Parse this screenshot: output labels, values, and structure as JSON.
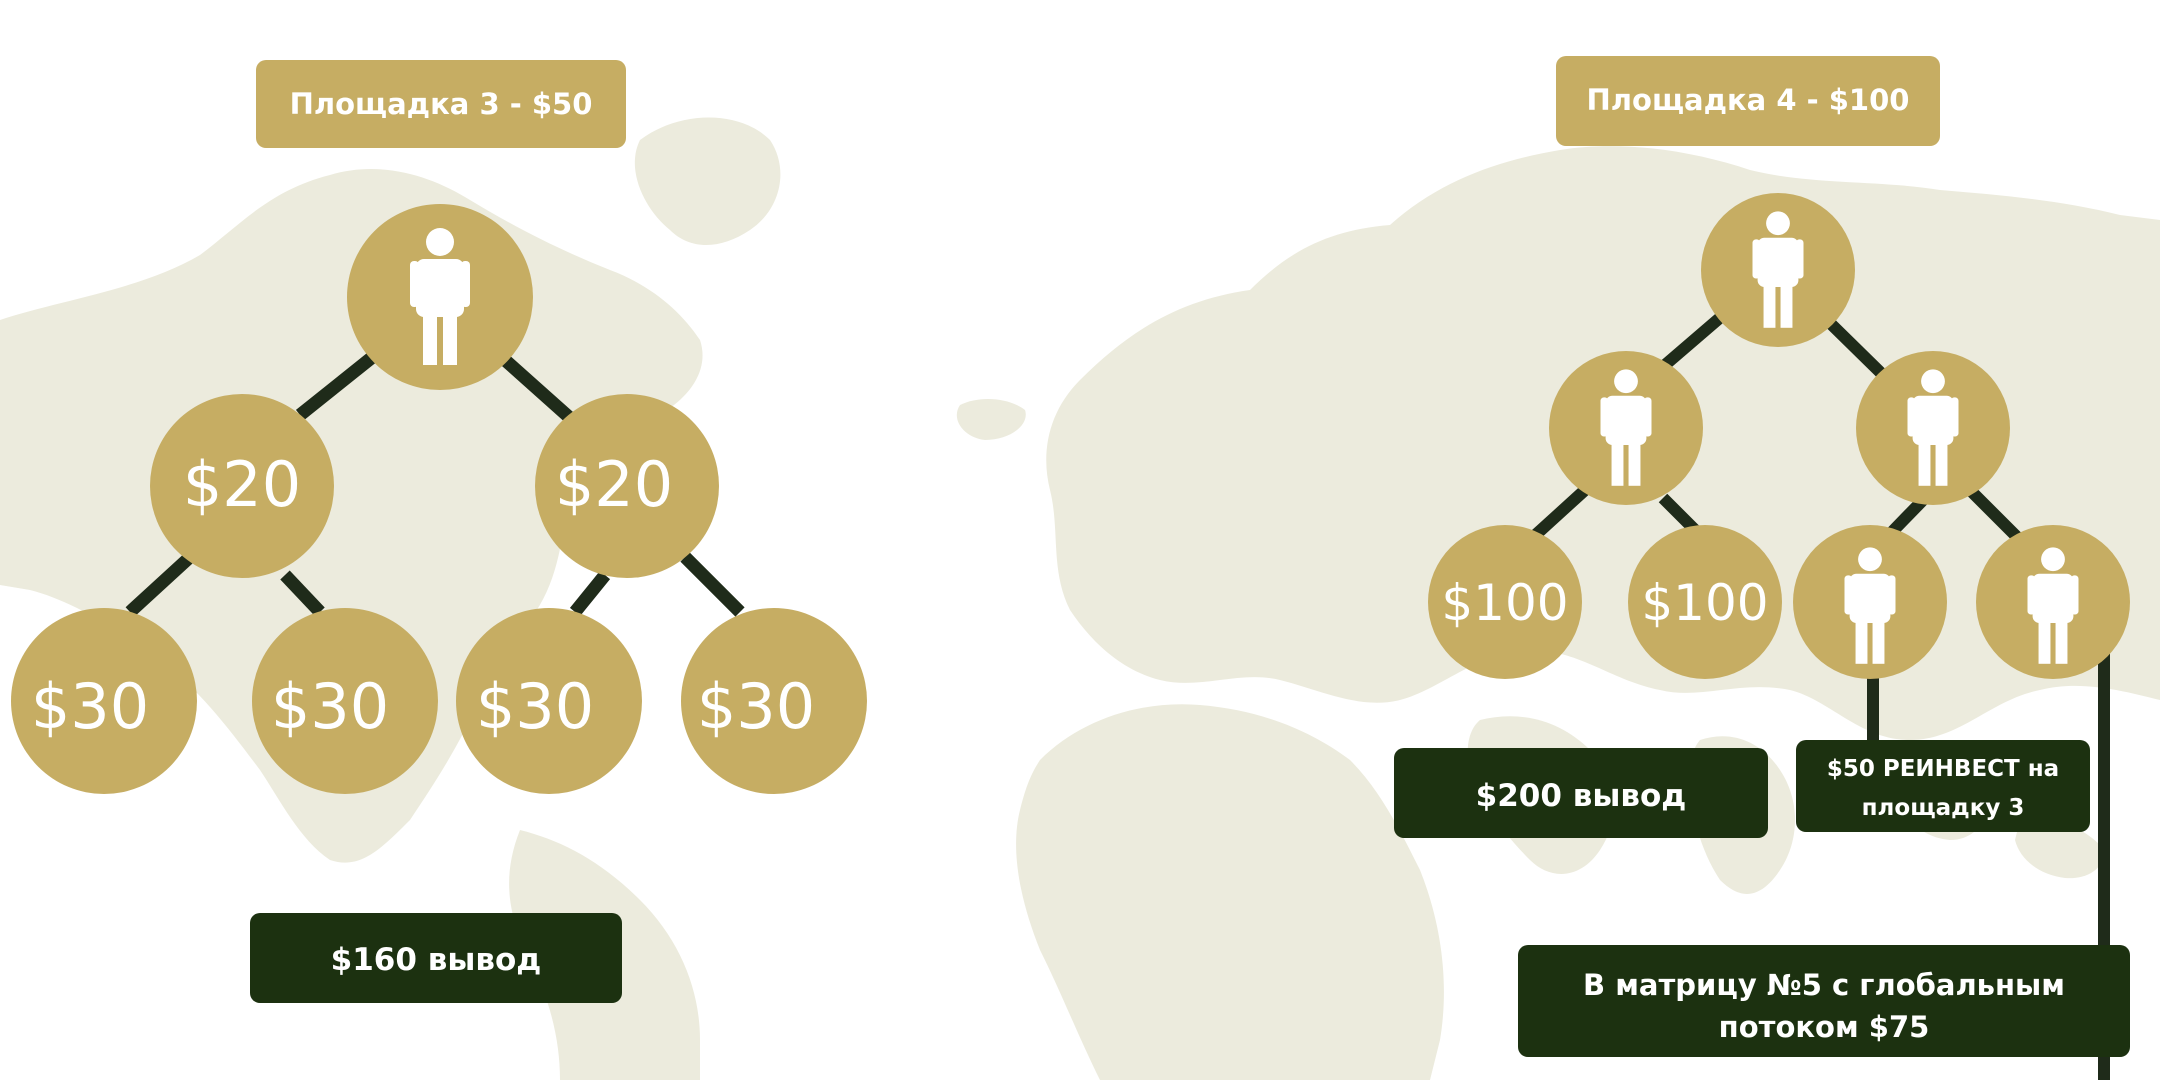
{
  "colors": {
    "gold": "#c6ad63",
    "dark_green": "#1c3110",
    "line": "#1f2b1a",
    "map": "#ecebdd",
    "white": "#ffffff"
  },
  "left": {
    "title": "Площадка 3 - $50",
    "root_icon": "person-icon",
    "level2": [
      "$20",
      "$20"
    ],
    "level3": [
      "$30",
      "$30",
      "$30",
      "$30"
    ],
    "withdraw": "$160 вывод"
  },
  "right": {
    "title": "Площадка 4 - $100",
    "root_icon": "person-icon",
    "level2_icons": [
      "person-icon",
      "person-icon"
    ],
    "level3_values": [
      "$100",
      "$100"
    ],
    "level3_icons": [
      "person-icon",
      "person-icon"
    ],
    "withdraw": "$200 вывод",
    "reinvest_line1": "$50 РЕИНВЕСТ на",
    "reinvest_line2": "площадку 3",
    "global_line1": "В матрицу №5 с глобальным",
    "global_line2": "потоком $75"
  }
}
